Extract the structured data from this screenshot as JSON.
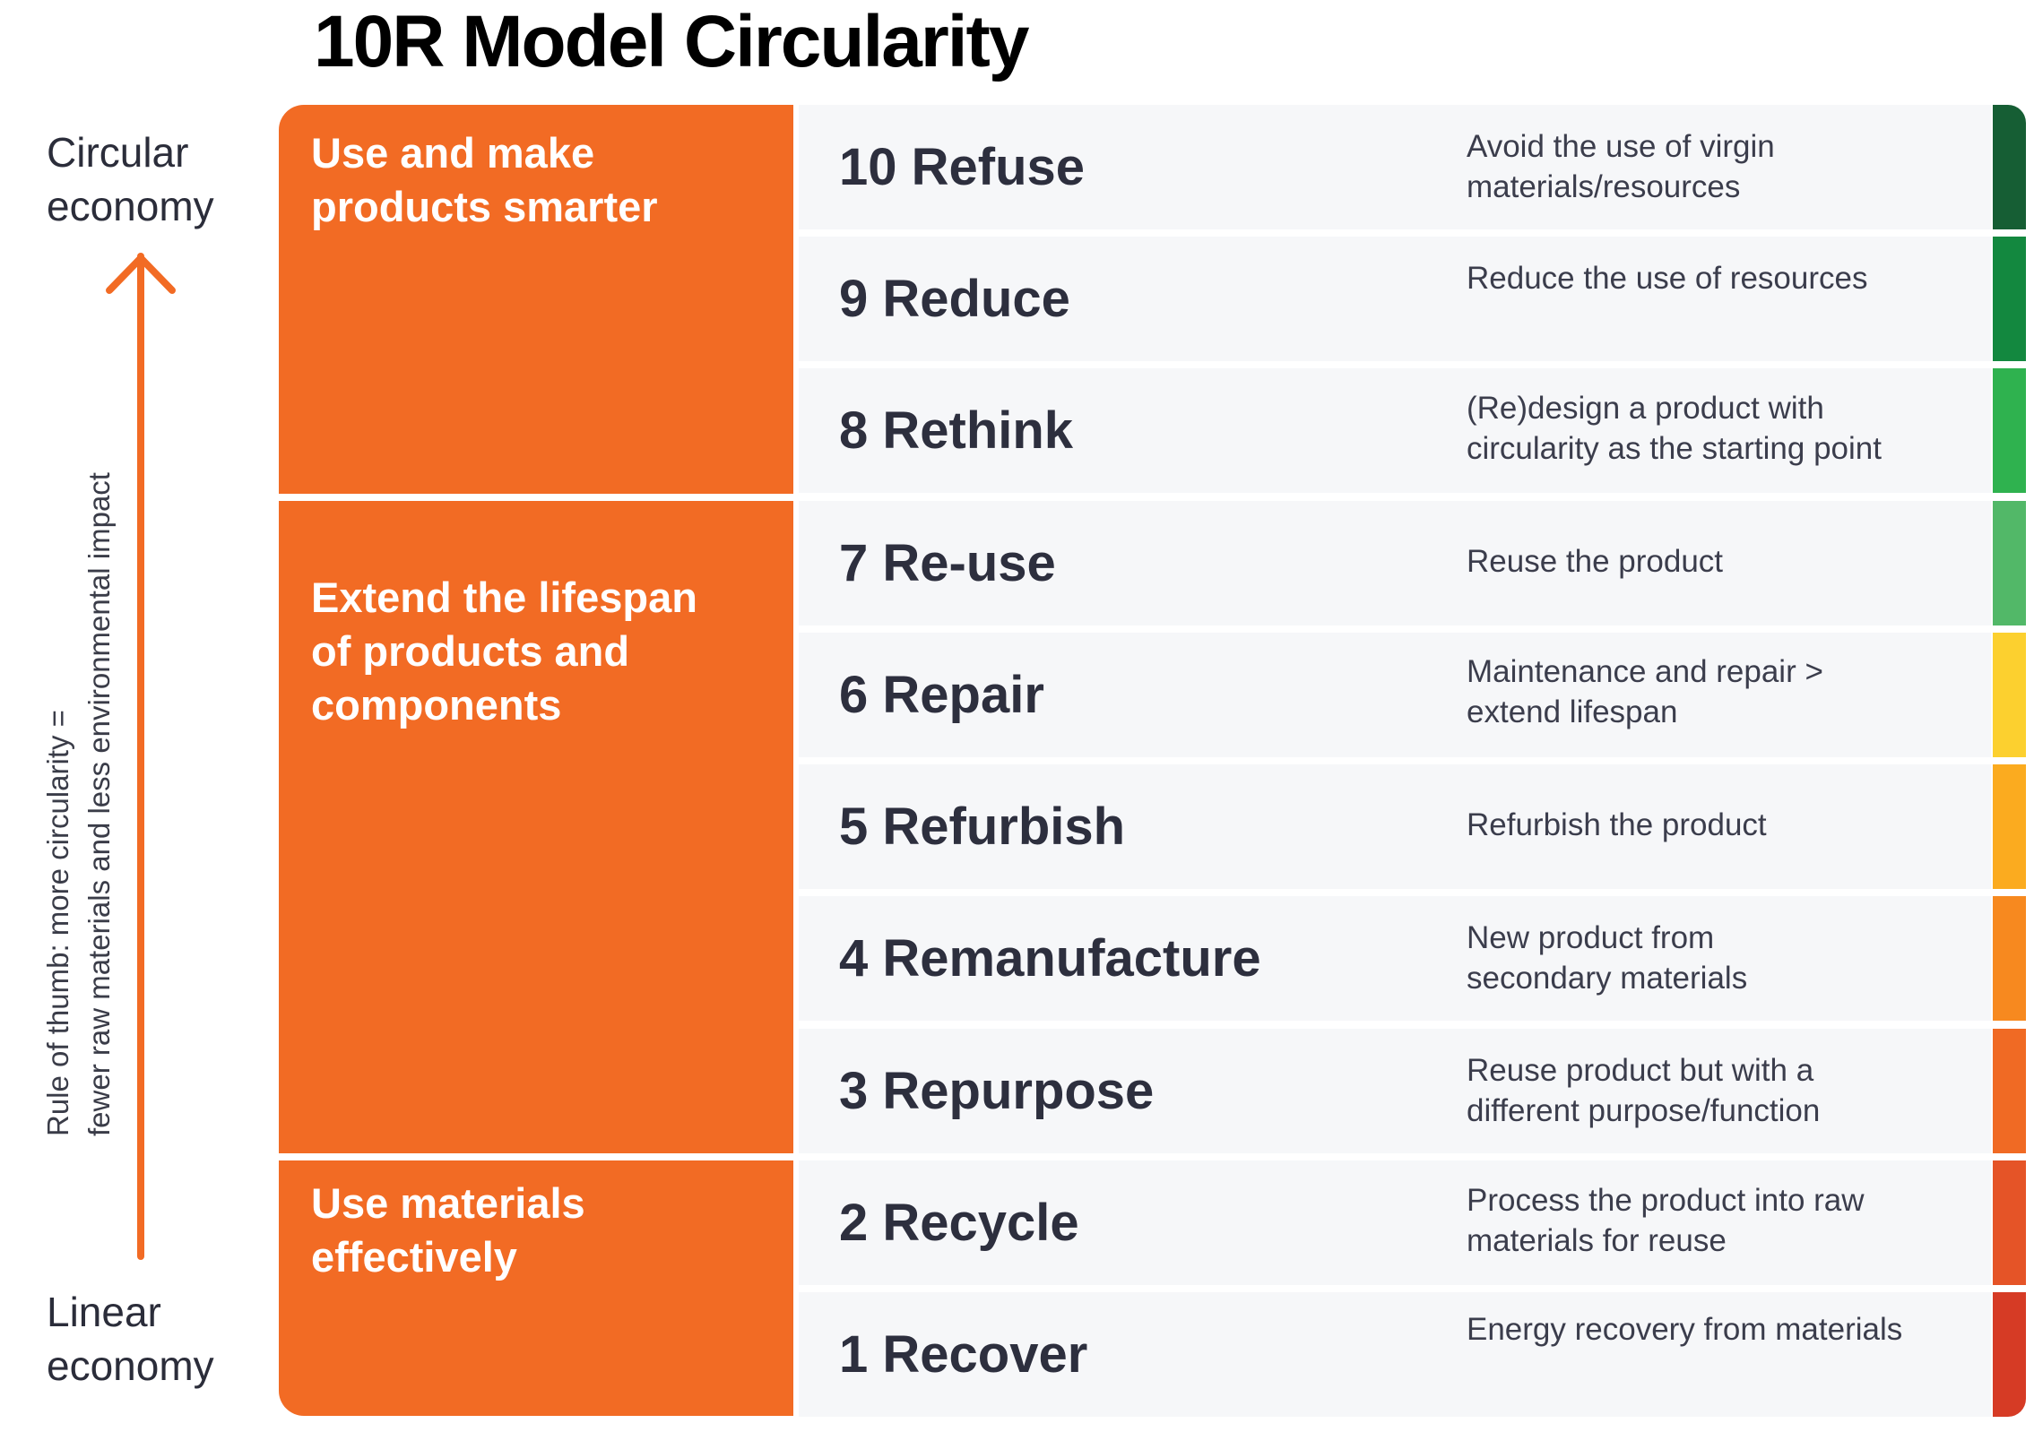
{
  "title": "10R Model Circularity",
  "axis": {
    "top_line1": "Circular",
    "top_line2": "economy",
    "bottom_line1": "Linear",
    "bottom_line2": "economy",
    "arrow_color": "#f26b24"
  },
  "rule_of_thumb": {
    "line1": "Rule of thumb: more circularity =",
    "line2": "fewer raw materials and less environmental impact"
  },
  "groups": [
    {
      "label_line1": "Use and make",
      "label_line2": "products smarter",
      "label_line3": ""
    },
    {
      "label_line1": "Extend the lifespan",
      "label_line2": "of products and",
      "label_line3": "components"
    },
    {
      "label_line1": "Use materials",
      "label_line2": "effectively",
      "label_line3": ""
    }
  ],
  "group_color": "#f26b24",
  "rows": [
    {
      "name": "10 Refuse",
      "desc_line1": "Avoid the use of virgin",
      "desc_line2": "materials/resources",
      "color": "#165e34"
    },
    {
      "name": "9 Reduce",
      "desc_line1": "Reduce the use of resources",
      "desc_line2": "",
      "color": "#13883f"
    },
    {
      "name": "8 Rethink",
      "desc_line1": "(Re)design a product with",
      "desc_line2": "circularity as the starting point",
      "color": "#2fb24f"
    },
    {
      "name": "7 Re-use",
      "desc_line1": "Reuse the product",
      "desc_line2": "",
      "color": "#52b868"
    },
    {
      "name": "6 Repair",
      "desc_line1": "Maintenance and repair >",
      "desc_line2": "extend lifespan",
      "color": "#fcd02f"
    },
    {
      "name": "5 Refurbish",
      "desc_line1": "Refurbish the product",
      "desc_line2": "",
      "color": "#fbab1f"
    },
    {
      "name": "4 Remanufacture",
      "desc_line1": "New product from",
      "desc_line2": "secondary materials",
      "color": "#f7891f"
    },
    {
      "name": "3 Repurpose",
      "desc_line1": "Reuse product but with a",
      "desc_line2": "different purpose/function",
      "color": "#f06a24"
    },
    {
      "name": "2 Recycle",
      "desc_line1": "Process the product into raw",
      "desc_line2": "materials for reuse",
      "color": "#e55427"
    },
    {
      "name": "1 Recover",
      "desc_line1": "Energy recovery from materials",
      "desc_line2": "",
      "color": "#d63b25"
    }
  ]
}
